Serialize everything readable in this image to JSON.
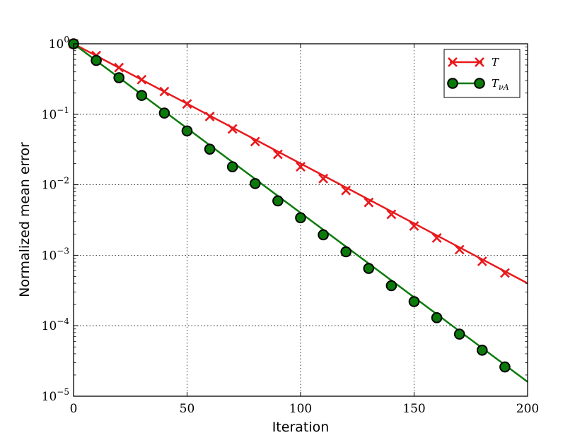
{
  "chart_data": {
    "type": "line",
    "xlabel": "Iteration",
    "ylabel": "Normalized mean error",
    "xlim": [
      0,
      200
    ],
    "ylim": [
      1e-05,
      1
    ],
    "yscale": "log",
    "grid": true,
    "legend_position": "top-right",
    "x_ticks": [
      "0",
      "50",
      "100",
      "150",
      "200"
    ],
    "y_ticks": [
      {
        "base": "10",
        "exp": "0",
        "value": 1
      },
      {
        "base": "10",
        "exp": "−1",
        "value": 0.1
      },
      {
        "base": "10",
        "exp": "−2",
        "value": 0.01
      },
      {
        "base": "10",
        "exp": "−3",
        "value": 0.001
      },
      {
        "base": "10",
        "exp": "−4",
        "value": 0.0001
      },
      {
        "base": "10",
        "exp": "−5",
        "value": 1e-05
      }
    ],
    "series": [
      {
        "name": "T",
        "color": "#e8191c",
        "marker": "x",
        "line_x": [
          0,
          200
        ],
        "line_y": [
          1,
          0.0004
        ],
        "marker_x": [
          0,
          10,
          20,
          30,
          40,
          50,
          60,
          70,
          80,
          90,
          100,
          110,
          120,
          130,
          140,
          150,
          160,
          170,
          180,
          190
        ],
        "marker_y": [
          1,
          0.68,
          0.46,
          0.31,
          0.21,
          0.14,
          0.093,
          0.062,
          0.041,
          0.027,
          0.018,
          0.0122,
          0.0083,
          0.0056,
          0.0038,
          0.0026,
          0.00176,
          0.0012,
          0.00082,
          0.00056
        ]
      },
      {
        "name": "T",
        "sub": "νA",
        "color": "#0b7a0b",
        "marker": "o",
        "line_x": [
          0,
          200
        ],
        "line_y": [
          1,
          1.6e-05
        ],
        "marker_x": [
          0,
          10,
          20,
          30,
          40,
          50,
          60,
          70,
          80,
          90,
          100,
          110,
          120,
          130,
          140,
          150,
          160,
          170,
          180,
          190
        ],
        "marker_y": [
          1,
          0.58,
          0.33,
          0.185,
          0.104,
          0.058,
          0.032,
          0.018,
          0.0104,
          0.0059,
          0.0034,
          0.00195,
          0.00112,
          0.00065,
          0.00037,
          0.00022,
          0.00013,
          7.6e-05,
          4.5e-05,
          2.6e-05
        ]
      }
    ]
  }
}
